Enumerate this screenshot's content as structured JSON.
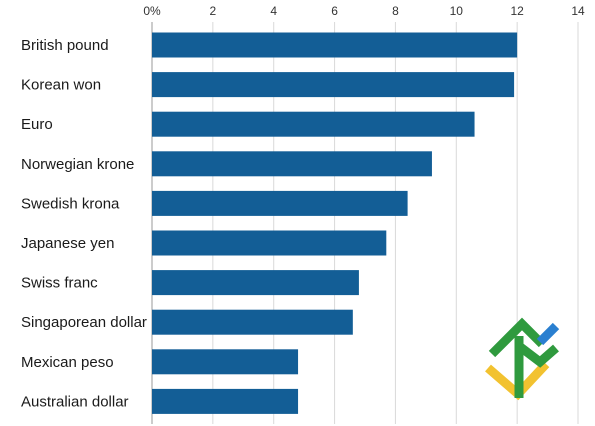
{
  "colors": {
    "bar": "#135e96",
    "grid": "#d9d9d9",
    "logo_green": "#2f9a3e",
    "logo_yellow": "#f2c230",
    "logo_blue": "#2a7fd0"
  },
  "logo": {
    "icon": "watermark-logo"
  },
  "chart_data": {
    "type": "bar",
    "orientation": "horizontal",
    "categories": [
      "British pound",
      "Korean won",
      "Euro",
      "Norwegian krone",
      "Swedish krona",
      "Japanese yen",
      "Swiss franc",
      "Singaporean dollar",
      "Mexican peso",
      "Australian dollar"
    ],
    "values": [
      12.0,
      11.9,
      10.6,
      9.2,
      8.4,
      7.7,
      6.8,
      6.6,
      4.8,
      4.8
    ],
    "xlim": [
      0,
      14
    ],
    "xticks": [
      0,
      2,
      4,
      6,
      8,
      10,
      12,
      14
    ],
    "xtick_labels": [
      "0%",
      "2",
      "4",
      "6",
      "8",
      "10",
      "12",
      "14"
    ],
    "title": "",
    "xlabel": "",
    "ylabel": "",
    "grid": "vertical",
    "legend": "none"
  }
}
